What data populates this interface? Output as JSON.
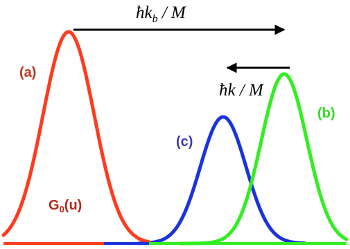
{
  "colors": {
    "curve_a": "#ff3b1f",
    "curve_b": "#33ee22",
    "curve_c": "#1a33dd",
    "label_a": "#c0311a",
    "label_b": "#33dd22",
    "label_c": "#3a3ab0",
    "g0_label": "#b02a16",
    "arrow": "#000000"
  },
  "labels": {
    "a": "(a)",
    "b": "(b)",
    "c": "(c)",
    "g0_main": "G",
    "g0_sub": "0",
    "g0_tail": "(u)"
  },
  "arrows": {
    "top_hbar": "ħ",
    "top_k": "k",
    "top_sub": "b",
    "top_tail": " / M",
    "mid_hbar": "ħ",
    "mid_tail": "k / M"
  }
}
